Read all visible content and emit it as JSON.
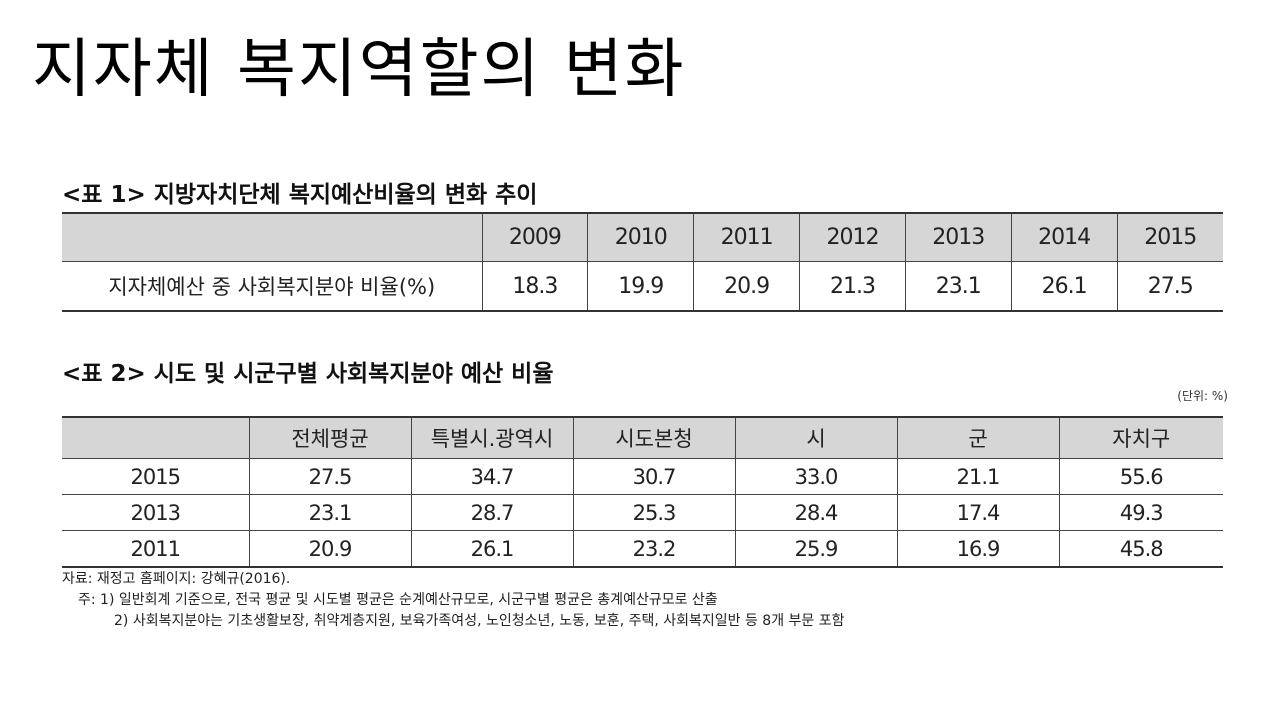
{
  "slide": {
    "title": "지자체 복지역할의 변화"
  },
  "table1": {
    "caption": "<표 1> 지방자치단체 복지예산비율의 변화 추이",
    "header_blank": "",
    "years": [
      "2009",
      "2010",
      "2011",
      "2012",
      "2013",
      "2014",
      "2015"
    ],
    "row_label": "지자체예산 중 사회복지분야 비율(%)",
    "values": [
      "18.3",
      "19.9",
      "20.9",
      "21.3",
      "23.1",
      "26.1",
      "27.5"
    ]
  },
  "table2": {
    "caption": "<표 2> 시도 및 시군구별 사회복지분야 예산 비율",
    "unit": "(단위: %)",
    "header_blank": "",
    "columns": [
      "전체평균",
      "특별시.광역시",
      "시도본청",
      "시",
      "군",
      "자치구"
    ],
    "rows": [
      {
        "year": "2015",
        "values": [
          "27.5",
          "34.7",
          "30.7",
          "33.0",
          "21.1",
          "55.6"
        ]
      },
      {
        "year": "2013",
        "values": [
          "23.1",
          "28.7",
          "25.3",
          "28.4",
          "17.4",
          "49.3"
        ]
      },
      {
        "year": "2011",
        "values": [
          "20.9",
          "26.1",
          "23.2",
          "25.9",
          "16.9",
          "45.8"
        ]
      }
    ]
  },
  "notes": {
    "source": "자료: 재정고 홈페이지: 강혜규(2016).",
    "note1": "주: 1) 일반회계 기준으로, 전국 평균 및 시도별 평균은 순계예산규모로, 시군구별 평균은 총계예산규모로 산출",
    "note2": "2) 사회복지분야는 기초생활보장, 취약계층지원, 보육가족여성, 노인청소년, 노동, 보훈, 주택, 사회복지일반 등 8개 부문 포함"
  }
}
